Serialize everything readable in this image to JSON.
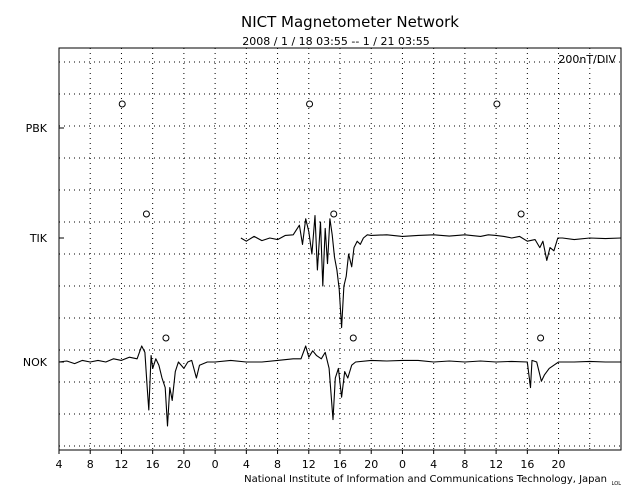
{
  "chart_data": {
    "type": "line",
    "title": "NICT Magnetometer Network",
    "subtitle": "2008 / 1 / 18   03:55 --  1 / 21   03:55",
    "scale_label": "200nT/DIV",
    "credit": "National Institute of Information and Communications Technology, Japan",
    "corner_mark": "LOL",
    "x_tick_labels": [
      "4",
      "8",
      "12",
      "16",
      "20",
      "0",
      "4",
      "8",
      "12",
      "16",
      "20",
      "0",
      "4",
      "8",
      "12",
      "16",
      "20"
    ],
    "x_range_hours": [
      0,
      72
    ],
    "grid": true,
    "grid_style": "dotted",
    "series": [
      {
        "name": "PBK",
        "values": [],
        "local_noon_hours": [
          8.1,
          32.1,
          56.1
        ]
      },
      {
        "name": "TIK",
        "start_hour": 23.3,
        "local_noon_hours": [
          11.2,
          35.2,
          59.2
        ],
        "points": [
          [
            23.3,
            0
          ],
          [
            24.0,
            -0.1
          ],
          [
            25.0,
            0.05
          ],
          [
            26.0,
            -0.08
          ],
          [
            27.0,
            0.0
          ],
          [
            28.0,
            -0.05
          ],
          [
            29.0,
            0.08
          ],
          [
            30.0,
            0.1
          ],
          [
            30.8,
            0.4
          ],
          [
            31.2,
            -0.2
          ],
          [
            31.6,
            0.6
          ],
          [
            32.0,
            0.2
          ],
          [
            32.4,
            -0.5
          ],
          [
            32.8,
            0.7
          ],
          [
            33.1,
            -1.0
          ],
          [
            33.5,
            0.5
          ],
          [
            33.8,
            -1.5
          ],
          [
            34.1,
            0.3
          ],
          [
            34.4,
            -0.8
          ],
          [
            34.7,
            0.6
          ],
          [
            35.0,
            0.1
          ],
          [
            35.3,
            -0.6
          ],
          [
            35.6,
            -1.0
          ],
          [
            35.9,
            -1.6
          ],
          [
            36.2,
            -2.8
          ],
          [
            36.5,
            -1.5
          ],
          [
            36.8,
            -1.2
          ],
          [
            37.1,
            -0.5
          ],
          [
            37.5,
            -0.9
          ],
          [
            37.8,
            -0.3
          ],
          [
            38.2,
            -0.1
          ],
          [
            38.6,
            -0.2
          ],
          [
            39.0,
            0.0
          ],
          [
            39.5,
            0.1
          ],
          [
            40.0,
            0.08
          ],
          [
            42.0,
            0.1
          ],
          [
            44.0,
            0.05
          ],
          [
            46.0,
            0.08
          ],
          [
            48.0,
            0.1
          ],
          [
            50.0,
            0.06
          ],
          [
            52.0,
            0.1
          ],
          [
            54.0,
            0.05
          ],
          [
            55.0,
            0.1
          ],
          [
            56.0,
            0.08
          ],
          [
            57.0,
            0.05
          ],
          [
            58.0,
            0.0
          ],
          [
            59.0,
            0.05
          ],
          [
            60.0,
            -0.1
          ],
          [
            61.0,
            -0.05
          ],
          [
            61.6,
            -0.3
          ],
          [
            62.0,
            -0.1
          ],
          [
            62.5,
            -0.7
          ],
          [
            62.9,
            -0.3
          ],
          [
            63.4,
            -0.4
          ],
          [
            63.9,
            0.0
          ],
          [
            64.5,
            0.0
          ],
          [
            66.0,
            -0.05
          ],
          [
            68.0,
            0.0
          ],
          [
            70.0,
            -0.02
          ],
          [
            72.0,
            0.0
          ]
        ]
      },
      {
        "name": "NOK",
        "start_hour": 0,
        "local_noon_hours": [
          13.7,
          37.7,
          61.7
        ],
        "points": [
          [
            0.0,
            0.0
          ],
          [
            1.0,
            0.03
          ],
          [
            2.0,
            -0.05
          ],
          [
            3.0,
            0.05
          ],
          [
            4.0,
            0.0
          ],
          [
            5.0,
            0.05
          ],
          [
            6.0,
            0.0
          ],
          [
            7.0,
            0.1
          ],
          [
            8.0,
            0.05
          ],
          [
            9.0,
            0.15
          ],
          [
            10.0,
            0.1
          ],
          [
            10.6,
            0.5
          ],
          [
            11.0,
            0.3
          ],
          [
            11.3,
            -0.8
          ],
          [
            11.5,
            -1.5
          ],
          [
            11.8,
            0.2
          ],
          [
            12.0,
            -0.2
          ],
          [
            12.4,
            0.1
          ],
          [
            12.8,
            -0.1
          ],
          [
            13.2,
            -0.5
          ],
          [
            13.6,
            -0.8
          ],
          [
            13.9,
            -2.0
          ],
          [
            14.2,
            -0.8
          ],
          [
            14.5,
            -1.2
          ],
          [
            14.9,
            -0.3
          ],
          [
            15.3,
            0.0
          ],
          [
            16.0,
            -0.2
          ],
          [
            16.5,
            0.0
          ],
          [
            17.0,
            0.05
          ],
          [
            17.6,
            -0.5
          ],
          [
            18.0,
            -0.1
          ],
          [
            19.0,
            0.0
          ],
          [
            20.0,
            0.0
          ],
          [
            22.0,
            0.05
          ],
          [
            24.0,
            0.0
          ],
          [
            26.0,
            0.0
          ],
          [
            28.0,
            0.05
          ],
          [
            30.0,
            0.1
          ],
          [
            31.0,
            0.1
          ],
          [
            31.6,
            0.5
          ],
          [
            32.0,
            0.15
          ],
          [
            32.5,
            0.35
          ],
          [
            33.0,
            0.2
          ],
          [
            33.6,
            0.1
          ],
          [
            34.1,
            0.3
          ],
          [
            34.6,
            -0.2
          ],
          [
            35.1,
            -1.8
          ],
          [
            35.4,
            -0.5
          ],
          [
            35.8,
            -0.2
          ],
          [
            36.2,
            -1.1
          ],
          [
            36.6,
            -0.3
          ],
          [
            37.0,
            -0.5
          ],
          [
            37.5,
            -0.1
          ],
          [
            38.0,
            0.0
          ],
          [
            40.0,
            0.05
          ],
          [
            42.0,
            0.03
          ],
          [
            44.0,
            0.05
          ],
          [
            46.0,
            0.05
          ],
          [
            48.0,
            0.0
          ],
          [
            50.0,
            0.03
          ],
          [
            52.0,
            0.0
          ],
          [
            54.0,
            0.03
          ],
          [
            56.0,
            0.0
          ],
          [
            58.0,
            0.02
          ],
          [
            60.0,
            0.0
          ],
          [
            60.4,
            -0.8
          ],
          [
            60.6,
            0.05
          ],
          [
            61.2,
            0.0
          ],
          [
            61.8,
            -0.6
          ],
          [
            62.2,
            -0.4
          ],
          [
            62.8,
            -0.2
          ],
          [
            63.4,
            -0.1
          ],
          [
            64.0,
            0.0
          ],
          [
            66.0,
            0.0
          ],
          [
            68.0,
            0.02
          ],
          [
            70.0,
            0.0
          ],
          [
            72.0,
            0.0
          ]
        ]
      }
    ]
  }
}
